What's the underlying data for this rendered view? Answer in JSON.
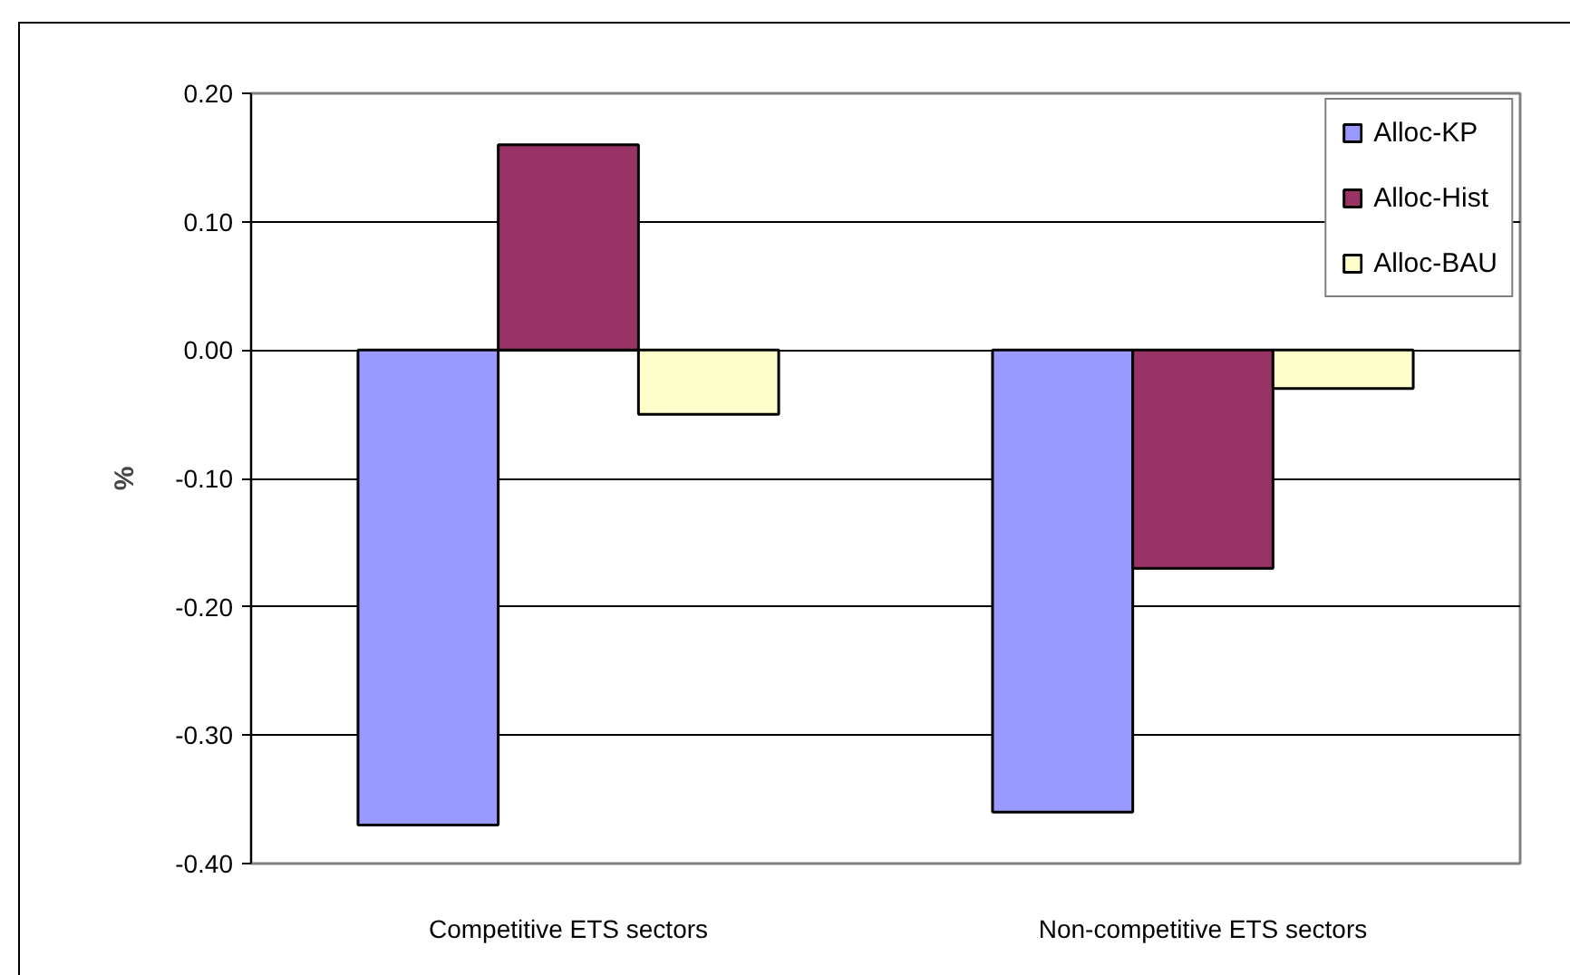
{
  "chart_data": {
    "type": "bar",
    "categories": [
      "Competitive ETS sectors",
      "Non-competitive ETS sectors"
    ],
    "ylabel": "%",
    "series": [
      {
        "name": "Alloc-KP",
        "color": "#9999ff",
        "values": [
          -0.37,
          -0.36
        ]
      },
      {
        "name": "Alloc-Hist",
        "color": "#993366",
        "values": [
          0.16,
          -0.17
        ]
      },
      {
        "name": "Alloc-BAU",
        "color": "#ffffcc",
        "values": [
          -0.05,
          -0.03
        ]
      }
    ],
    "ylim": [
      -0.4,
      0.2
    ],
    "yticks": [
      {
        "value": -0.4,
        "label": "-0.40"
      },
      {
        "value": -0.3,
        "label": "-0.30"
      },
      {
        "value": -0.2,
        "label": "-0.20"
      },
      {
        "value": -0.1,
        "label": "-0.10"
      },
      {
        "value": 0,
        "label": "0.00"
      },
      {
        "value": 0.1,
        "label": "0.10"
      },
      {
        "value": 0.2,
        "label": "0.20"
      }
    ],
    "grid": "y",
    "legend": "top right"
  }
}
